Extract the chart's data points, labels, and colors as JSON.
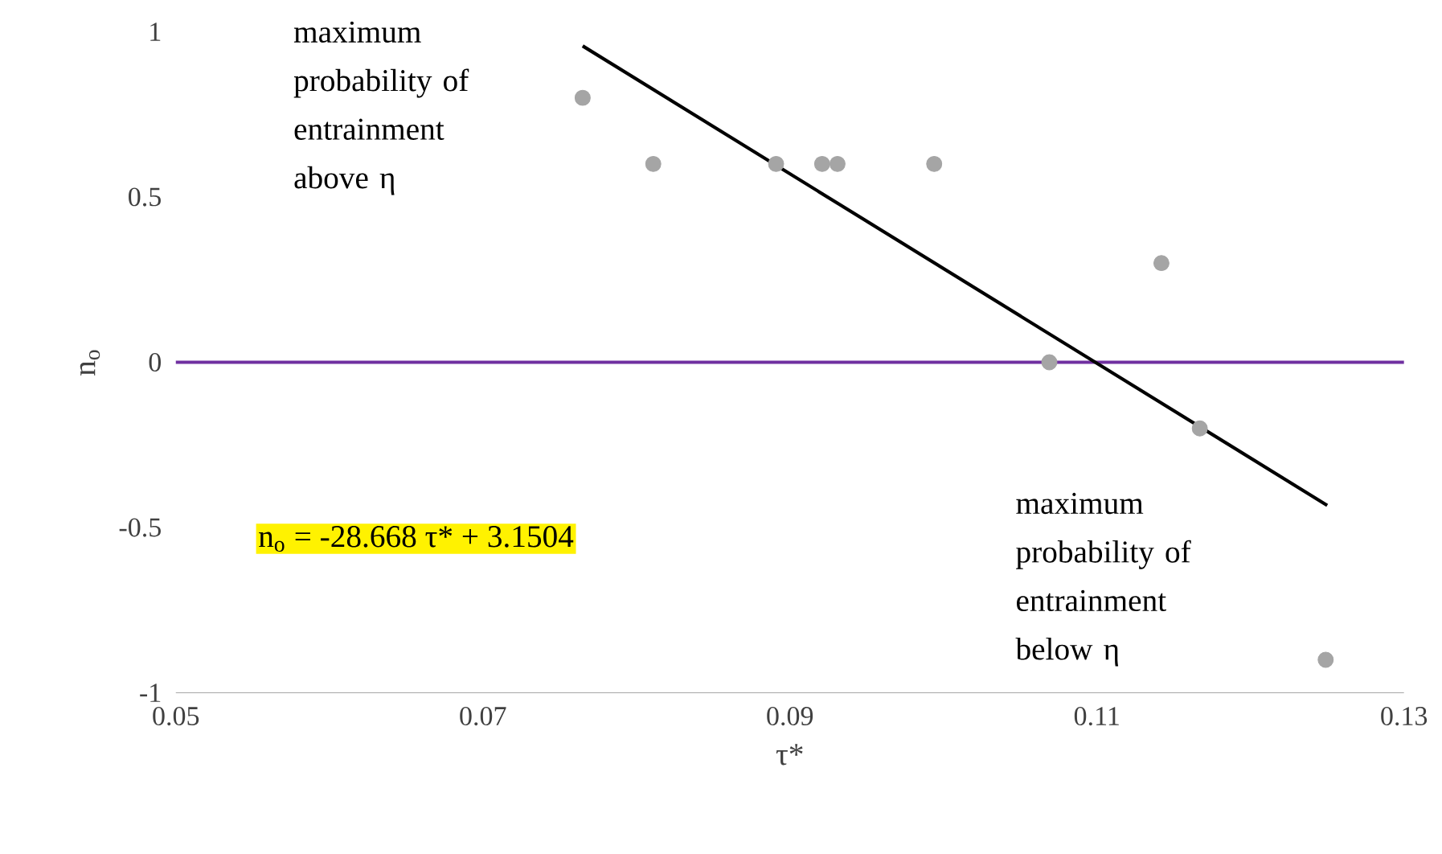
{
  "chart_data": {
    "type": "scatter",
    "xlabel": "τ*",
    "ylabel": "n$_{o}$",
    "xlim": [
      0.05,
      0.13
    ],
    "xticks": [
      0.05,
      0.07,
      0.09,
      0.11,
      0.13
    ],
    "ylim": [
      -1,
      1
    ],
    "yticks": [
      -1,
      -0.5,
      0,
      0.5,
      1
    ],
    "grid": false,
    "marker": "circle",
    "series": [
      {
        "color": "#a5a5a5",
        "x": [
          0.0765,
          0.0811,
          0.0891,
          0.0921,
          0.0931,
          0.0994,
          0.1142,
          0.1069,
          0.1167,
          0.1249
        ],
        "values": [
          0.8,
          0.6,
          0.6,
          0.6,
          0.6,
          0.6,
          0.3,
          0,
          -0.2,
          -0.9
        ]
      },
      {
        "type": "line",
        "color": "#000000",
        "marker": "none",
        "x": [
          0.0765,
          0.125
        ],
        "values": [
          0.957,
          -0.433
        ]
      }
    ],
    "ref_lines": [
      {
        "axis": "y",
        "value": 0,
        "color": "#7030a0"
      }
    ],
    "annotations": [
      "maximum probability of entrainment above η",
      "maximum probability of entrainment below η",
      "n$_{o}$ = -28.668 τ* + 3.1504"
    ]
  }
}
